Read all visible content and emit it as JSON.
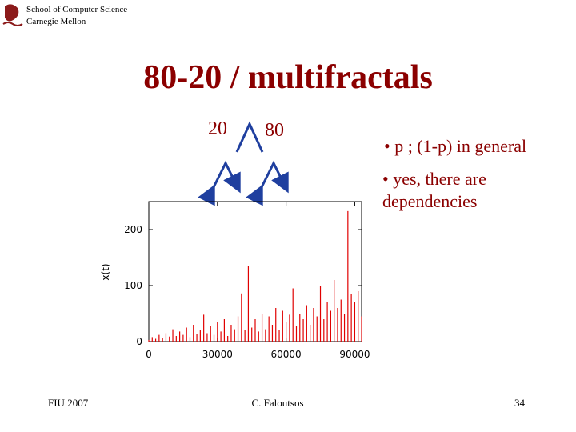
{
  "header": {
    "school": "School of Computer Science",
    "university": "Carnegie Mellon"
  },
  "title": "80-20 / multifractals",
  "diagram": {
    "left": "20",
    "right": "80"
  },
  "bullets": [
    "• p ; (1-p) in general",
    "• yes, there are dependencies"
  ],
  "footer": {
    "left": "FIU 2007",
    "center": "C. Faloutsos",
    "page": "34"
  },
  "chart_data": {
    "type": "impulse",
    "ylabel": "x(t)",
    "color": "#e00000",
    "x": [
      0,
      1500,
      3000,
      4500,
      6000,
      7500,
      9000,
      10500,
      12000,
      13500,
      15000,
      16500,
      18000,
      19500,
      21000,
      22500,
      24000,
      25500,
      27000,
      28500,
      30000,
      31500,
      33000,
      34500,
      36000,
      37500,
      39000,
      40500,
      42000,
      43500,
      45000,
      46500,
      48000,
      49500,
      51000,
      52500,
      54000,
      55500,
      57000,
      58500,
      60000,
      61500,
      63000,
      64500,
      66000,
      67500,
      69000,
      70500,
      72000,
      73500,
      75000,
      76500,
      78000,
      79500,
      81000,
      82500,
      84000,
      85500,
      87000,
      88500,
      90000,
      91500,
      93000
    ],
    "values": [
      3,
      8,
      5,
      12,
      6,
      15,
      9,
      22,
      10,
      18,
      12,
      25,
      8,
      30,
      14,
      20,
      48,
      15,
      28,
      12,
      35,
      18,
      40,
      10,
      30,
      22,
      45,
      86,
      20,
      135,
      25,
      40,
      18,
      50,
      22,
      45,
      30,
      60,
      20,
      55,
      35,
      48,
      95,
      28,
      50,
      40,
      65,
      30,
      60,
      45,
      100,
      40,
      70,
      55,
      110,
      60,
      75,
      50,
      233,
      85,
      70,
      90,
      45
    ],
    "xlim": [
      0,
      93000
    ],
    "ylim": [
      0,
      250
    ],
    "xticks": [
      0,
      30000,
      60000,
      90000
    ],
    "yticks": [
      0,
      100,
      200
    ]
  }
}
